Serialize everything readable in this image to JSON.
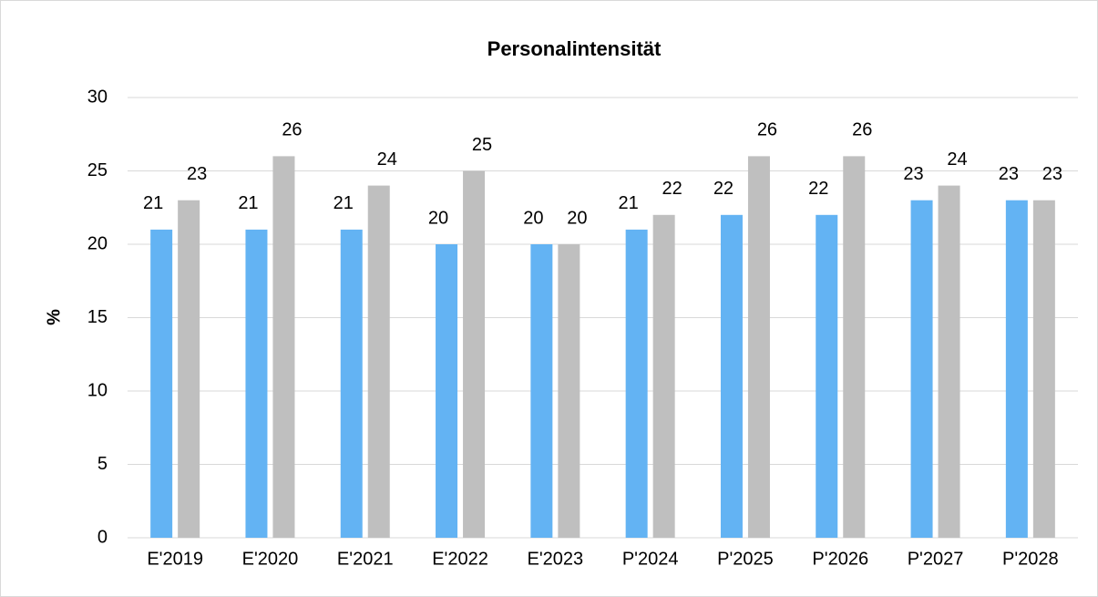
{
  "chart_data": {
    "type": "bar",
    "title": "Personalintensität",
    "y_label": "%",
    "categories": [
      "E'2019",
      "E'2020",
      "E'2021",
      "E'2022",
      "E'2023",
      "P'2024",
      "P'2025",
      "P'2026",
      "P'2027",
      "P'2028"
    ],
    "series": [
      {
        "color": "#63b3f3",
        "values": [
          21,
          21,
          21,
          20,
          20,
          21,
          22,
          22,
          23,
          23
        ]
      },
      {
        "color": "#bfbfbf",
        "values": [
          23,
          26,
          24,
          25,
          20,
          22,
          26,
          26,
          24,
          23
        ]
      }
    ],
    "ylim": [
      0,
      30
    ],
    "yticks": [
      0,
      5,
      10,
      15,
      20,
      25,
      30
    ],
    "grid": true
  }
}
